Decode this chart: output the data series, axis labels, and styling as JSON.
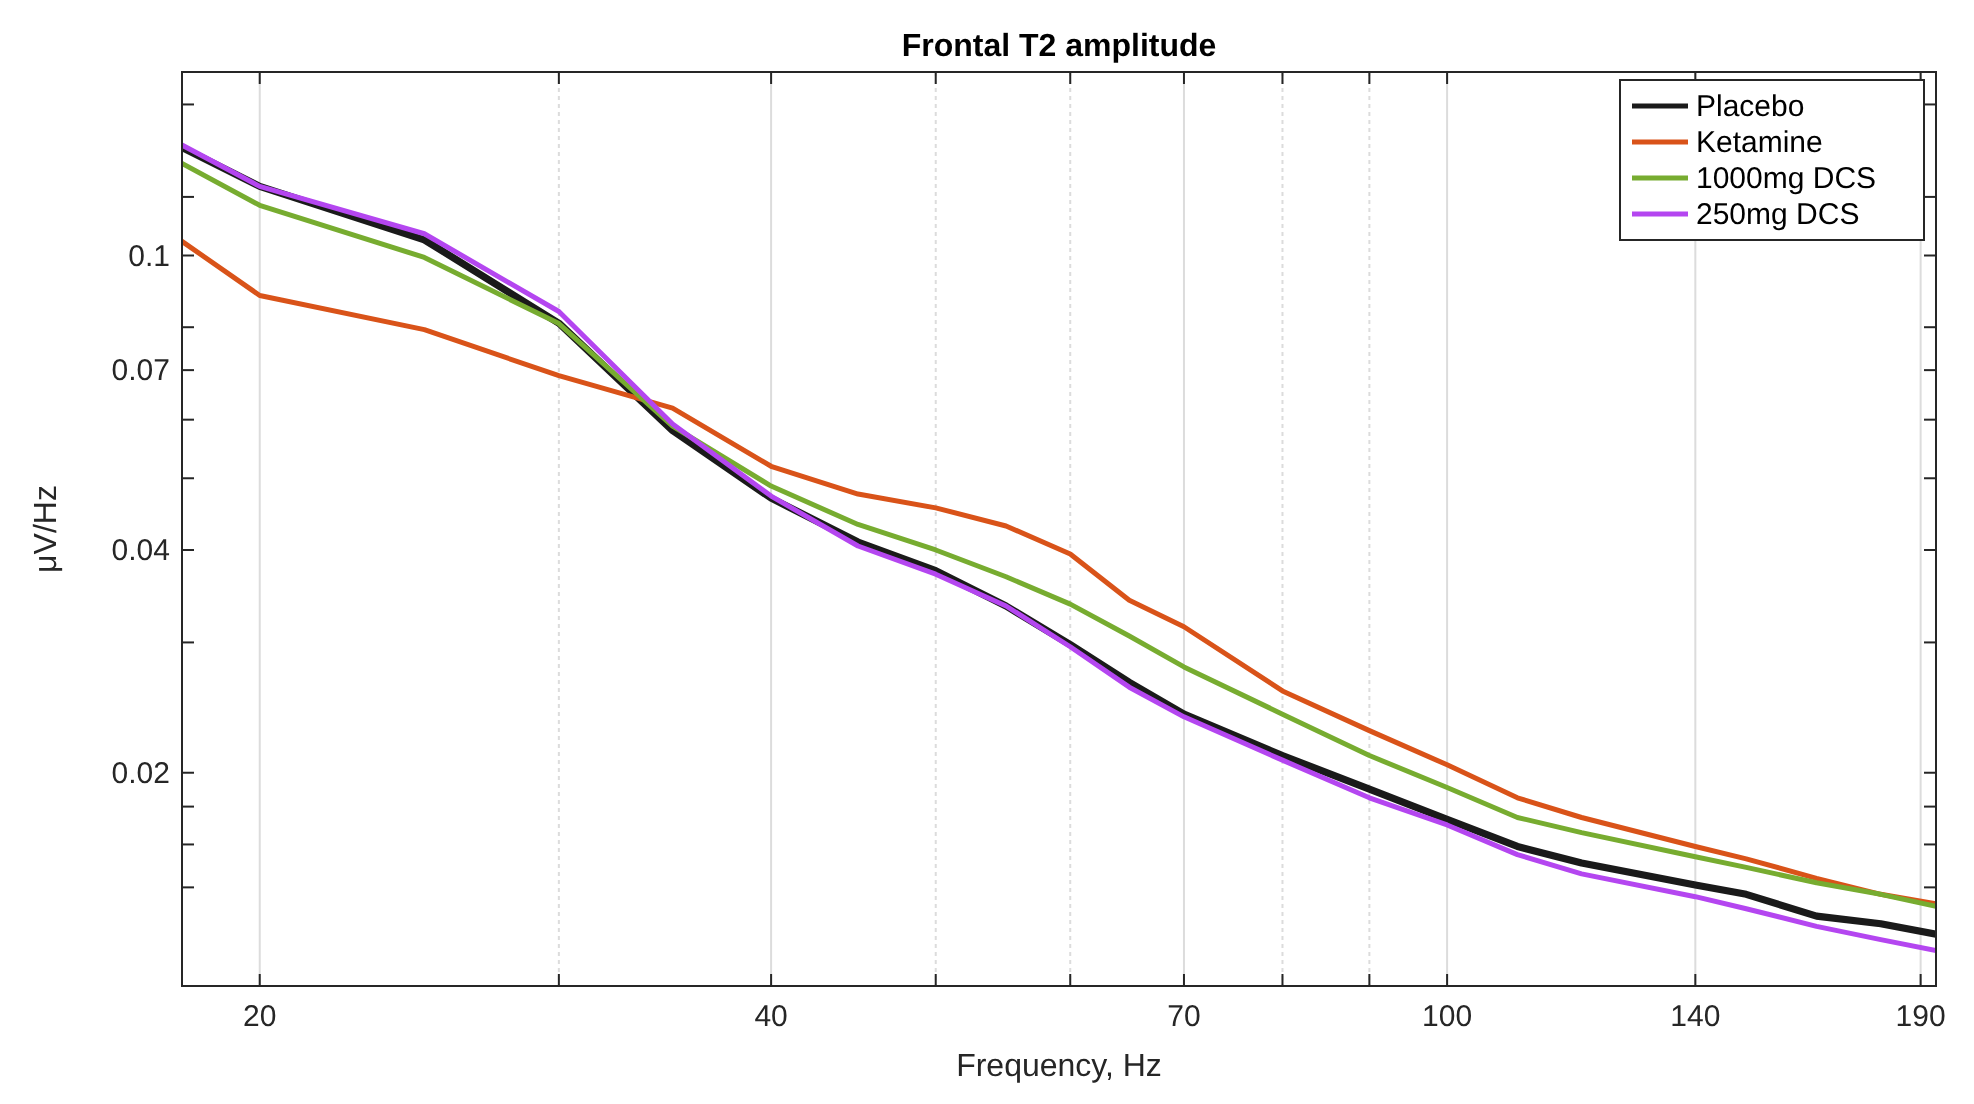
{
  "chart_data": {
    "type": "line",
    "title": "Frontal T2 amplitude",
    "xlabel": "Frequency, Hz",
    "ylabel": "μV/Hz",
    "log": "xy",
    "grid": "x",
    "legend": "top right",
    "line_style": "solid",
    "marker": "none",
    "x": [
      18,
      20,
      25,
      30,
      35,
      40,
      45,
      50,
      55,
      60,
      65,
      70,
      80,
      90,
      100,
      110,
      120,
      140,
      150,
      165,
      180,
      194
    ],
    "xlim": [
      18,
      194
    ],
    "ylim": [
      0.0103,
      0.177
    ],
    "xticks": [
      20,
      {
        "value": 30,
        "label": null
      },
      40,
      {
        "value": 50,
        "label": null
      },
      {
        "value": 60,
        "label": null
      },
      70,
      {
        "value": 80,
        "label": null
      },
      {
        "value": 90,
        "label": null
      },
      100,
      140,
      190
    ],
    "yticks": [
      {
        "value": 0.014,
        "label": null
      },
      {
        "value": 0.016,
        "label": null
      },
      {
        "value": 0.018,
        "label": null
      },
      0.02,
      {
        "value": 0.03,
        "label": null
      },
      0.04,
      {
        "value": 0.05,
        "label": null
      },
      {
        "value": 0.06,
        "label": null
      },
      0.07,
      {
        "value": 0.08,
        "label": null
      },
      0.1,
      {
        "value": 0.12,
        "label": null
      },
      {
        "value": 0.16,
        "label": null
      }
    ],
    "series": [
      {
        "name": "Placebo",
        "color": "#1a1a1a",
        "values": [
          0.14,
          0.124,
          0.105,
          0.081,
          0.058,
          0.047,
          0.041,
          0.0375,
          0.0336,
          0.0298,
          0.0265,
          0.024,
          0.0211,
          0.019,
          0.0173,
          0.0159,
          0.0151,
          0.0141,
          0.0137,
          0.0128,
          0.0125,
          0.0121
        ]
      },
      {
        "name": "Ketamine",
        "color": "#d95319",
        "values": [
          0.1045,
          0.0883,
          0.0794,
          0.0688,
          0.0622,
          0.0519,
          0.0476,
          0.0456,
          0.0431,
          0.0395,
          0.0342,
          0.0315,
          0.0258,
          0.0228,
          0.0205,
          0.0185,
          0.0174,
          0.0159,
          0.0153,
          0.0144,
          0.0137,
          0.0133
        ]
      },
      {
        "name": "1000mg DCS",
        "color": "#77ac30",
        "values": [
          0.1332,
          0.1169,
          0.0994,
          0.0809,
          0.0588,
          0.0488,
          0.0433,
          0.04,
          0.0368,
          0.0338,
          0.0306,
          0.0278,
          0.024,
          0.0211,
          0.0191,
          0.0174,
          0.0166,
          0.0154,
          0.0149,
          0.0142,
          0.0137,
          0.0132
        ]
      },
      {
        "name": "250mg DCS",
        "color": "#b446f0",
        "values": [
          0.141,
          0.124,
          0.107,
          0.084,
          0.0592,
          0.0473,
          0.0405,
          0.0371,
          0.0336,
          0.0296,
          0.0261,
          0.0238,
          0.0208,
          0.0185,
          0.017,
          0.0155,
          0.0146,
          0.0136,
          0.0131,
          0.0124,
          0.0119,
          0.0115
        ]
      }
    ]
  }
}
